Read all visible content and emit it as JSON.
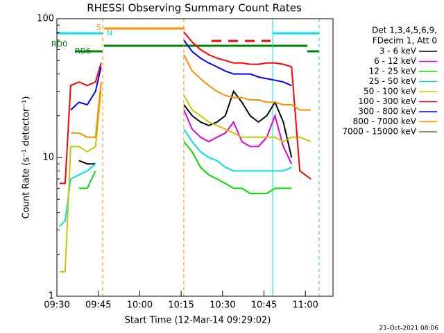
{
  "chart_data": {
    "type": "line",
    "title": "RHESSI Observing Summary Count Rates",
    "x_label": "Start Time (12-Mar-14 09:29:02)",
    "y_label": "Count Rate (s⁻¹ detector⁻¹)",
    "legend_title": [
      "Det 1,3,4,5,6,9,",
      "FDecim 1, Att 0"
    ],
    "legend": "right",
    "footer": "21-Oct-2021 08:06",
    "annotations": [
      "S",
      "N",
      "RD0",
      "RD6"
    ],
    "ylog": true,
    "xlim": [
      "09:30",
      "11:10"
    ],
    "xticks": [
      "09:30",
      "09:45",
      "10:00",
      "10:15",
      "10:30",
      "10:45",
      "11:00"
    ],
    "ylim": [
      1,
      100
    ],
    "yticks": [
      1,
      10,
      100
    ],
    "x": [
      "09:31",
      "09:33",
      "09:35",
      "09:38",
      "09:41",
      "09:44",
      "09:46",
      "10:00",
      "10:16",
      "10:19",
      "10:22",
      "10:25",
      "10:28",
      "10:31",
      "10:34",
      "10:37",
      "10:40",
      "10:43",
      "10:46",
      "10:49",
      "10:52",
      "10:55",
      "10:58",
      "11:02"
    ],
    "series": [
      {
        "name": "3 - 6 keV",
        "color": "#000000",
        "values": [
          null,
          null,
          null,
          9.5,
          9,
          9,
          null,
          null,
          24,
          20,
          18,
          17,
          18,
          20,
          30,
          25,
          20,
          18,
          20,
          25,
          18,
          10,
          null,
          null
        ]
      },
      {
        "name": "6 - 12 keV",
        "color": "#e000e0",
        "values": [
          null,
          null,
          null,
          null,
          null,
          null,
          null,
          null,
          22,
          16,
          14,
          13,
          14,
          15,
          18,
          13,
          12,
          12,
          14,
          20,
          12,
          9,
          null,
          null
        ]
      },
      {
        "name": "12 - 25 keV",
        "color": "#00e000",
        "values": [
          null,
          null,
          null,
          6,
          6,
          8,
          null,
          null,
          13,
          11,
          8.5,
          7.5,
          7,
          6.5,
          6,
          6,
          5.5,
          5.5,
          5.5,
          6,
          6,
          6,
          null,
          null
        ]
      },
      {
        "name": "25 - 50 keV",
        "color": "#00e0e0",
        "values": [
          3.2,
          3.5,
          7,
          7.5,
          8,
          9,
          null,
          null,
          16,
          13,
          11,
          10,
          9.5,
          8.5,
          8,
          8,
          8,
          8,
          8,
          8,
          8,
          8.5,
          null,
          null
        ]
      },
      {
        "name": "50 - 100 keV",
        "color": "#c8c800",
        "values": [
          1.5,
          1.5,
          12,
          12,
          11,
          12,
          30,
          null,
          28,
          22,
          20,
          18,
          17,
          16,
          15,
          14,
          14,
          14,
          14,
          14,
          13,
          14,
          14,
          13
        ]
      },
      {
        "name": "100 - 300 keV",
        "color": "#ff0000",
        "values": [
          6.5,
          6.5,
          33,
          35,
          33,
          35,
          48,
          null,
          80,
          68,
          60,
          55,
          52,
          50,
          48,
          48,
          47,
          47,
          48,
          48,
          47,
          45,
          8,
          7
        ]
      },
      {
        "name": "300 - 800 keV",
        "color": "#0000ff",
        "values": [
          null,
          null,
          22,
          25,
          24,
          30,
          45,
          null,
          70,
          58,
          52,
          48,
          45,
          42,
          40,
          40,
          40,
          38,
          37,
          36,
          35,
          33,
          null,
          null
        ]
      },
      {
        "name": "800 - 7000 keV",
        "color": "#ff8c00",
        "values": [
          null,
          null,
          15,
          15,
          14,
          14,
          35,
          null,
          55,
          42,
          37,
          33,
          30,
          28,
          27,
          27,
          26,
          26,
          25,
          25,
          24,
          24,
          22,
          22
        ]
      },
      {
        "name": "7000 - 15000 keV",
        "color": "#996633",
        "values": [
          null,
          null,
          null,
          null,
          null,
          null,
          null,
          null,
          null,
          null,
          null,
          null,
          null,
          null,
          null,
          null,
          null,
          null,
          null,
          null,
          null,
          null,
          null,
          null
        ]
      }
    ]
  }
}
